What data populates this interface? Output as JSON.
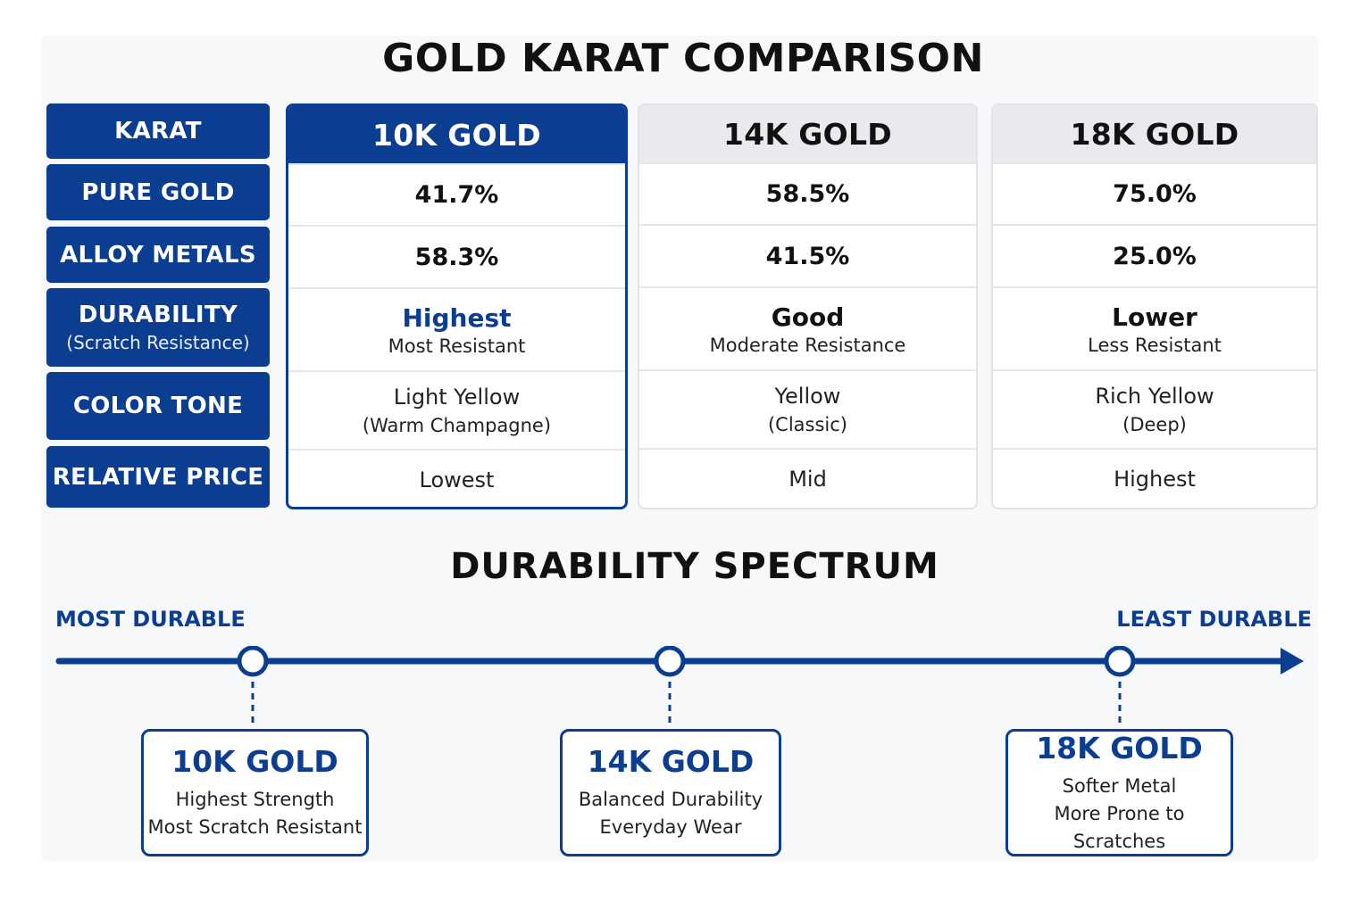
{
  "title": "GOLD KARAT COMPARISON",
  "row_labels": [
    {
      "label": "KARAT",
      "sub": ""
    },
    {
      "label": "PURE GOLD",
      "sub": ""
    },
    {
      "label": "ALLOY METALS",
      "sub": ""
    },
    {
      "label": "DURABILITY",
      "sub": "(Scratch Resistance)"
    },
    {
      "label": "COLOR TONE",
      "sub": ""
    },
    {
      "label": "RELATIVE PRICE",
      "sub": ""
    }
  ],
  "columns": [
    {
      "header": "10K GOLD",
      "pure_gold": "41.7%",
      "alloy_metals": "58.3%",
      "durability": "Highest",
      "durability_note": "Most Resistant",
      "color_tone": "Light Yellow",
      "color_note": "(Warm Champagne)",
      "price": "Lowest"
    },
    {
      "header": "14K GOLD",
      "pure_gold": "58.5%",
      "alloy_metals": "41.5%",
      "durability": "Good",
      "durability_note": "Moderate Resistance",
      "color_tone": "Yellow",
      "color_note": "(Classic)",
      "price": "Mid"
    },
    {
      "header": "18K GOLD",
      "pure_gold": "75.0%",
      "alloy_metals": "25.0%",
      "durability": "Lower",
      "durability_note": "Less Resistant",
      "color_tone": "Rich Yellow",
      "color_note": "(Deep)",
      "price": "Highest"
    }
  ],
  "spectrum": {
    "title": "DURABILITY SPECTRUM",
    "left_label": "MOST DURABLE",
    "right_label": "LEAST DURABLE",
    "cards": [
      {
        "title": "10K GOLD",
        "line1": "Highest Strength",
        "line2": "Most Scratch Resistant"
      },
      {
        "title": "14K GOLD",
        "line1": "Balanced Durability",
        "line2": "Everyday Wear"
      },
      {
        "title": "18K GOLD",
        "line1": "Softer Metal",
        "line2": "More Prone to Scratches"
      }
    ]
  },
  "colors": {
    "accent": "#0b3d91",
    "header_gray": "#e9eaed",
    "border_gray": "#e1e3e7"
  }
}
